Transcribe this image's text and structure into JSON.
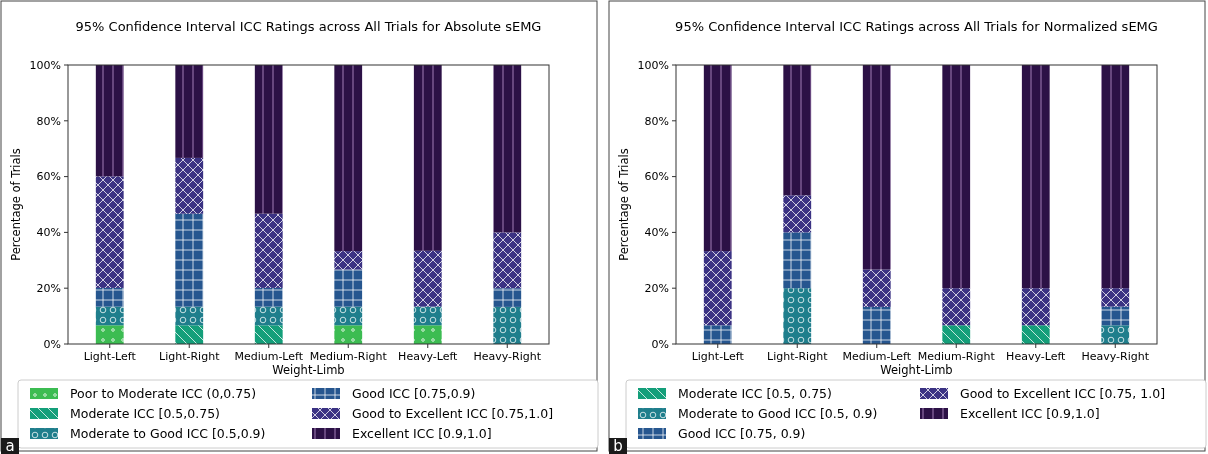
{
  "chart_data": [
    {
      "type": "bar",
      "stacked": true,
      "title": "95% Confidence Interval ICC Ratings across All Trials for Absolute sEMG",
      "xlabel": "Weight-Limb",
      "ylabel": "Percentage of Trials",
      "categories": [
        "Light-Left",
        "Light-Right",
        "Medium-Left",
        "Medium-Right",
        "Heavy-Left",
        "Heavy-Right"
      ],
      "ylim": [
        0,
        100
      ],
      "yticks": [
        {
          "value": 0,
          "label": "0%"
        },
        {
          "value": 20,
          "label": "20%"
        },
        {
          "value": 40,
          "label": "40%"
        },
        {
          "value": 60,
          "label": "60%"
        },
        {
          "value": 80,
          "label": "80%"
        },
        {
          "value": 100,
          "label": "100%"
        }
      ],
      "grid": false,
      "legend": "bottom",
      "annotations": [
        "a"
      ],
      "series": [
        {
          "name": "Poor to Moderate ICC (0,0.75)",
          "color": "#3cbc52",
          "values": [
            6.7,
            0,
            0,
            6.7,
            6.7,
            0
          ]
        },
        {
          "name": "Moderate ICC [0.5,0.75)",
          "color": "#149f7a",
          "values": [
            0,
            6.7,
            6.7,
            0,
            0,
            0
          ]
        },
        {
          "name": "Moderate to Good ICC [0.5,0.9)",
          "color": "#1f7e8c",
          "values": [
            6.7,
            6.7,
            6.7,
            6.7,
            6.7,
            13.3
          ]
        },
        {
          "name": "Good ICC [0.75,0.9)",
          "color": "#26568f",
          "values": [
            6.7,
            33.3,
            6.7,
            13.3,
            0,
            6.7
          ]
        },
        {
          "name": "Good to Excellent ICC [0.75,1.0]",
          "color": "#3b3283",
          "values": [
            40,
            20,
            26.6,
            6.6,
            20,
            20
          ]
        },
        {
          "name": "Excellent ICC [0.9,1.0]",
          "color": "#2c1146",
          "values": [
            39.9,
            33.3,
            53.3,
            66.7,
            66.6,
            60
          ]
        }
      ]
    },
    {
      "type": "bar",
      "stacked": true,
      "title": "95% Confidence Interval ICC Ratings across All Trials for Normalized sEMG",
      "xlabel": "Weight-Limb",
      "ylabel": "Percentage of Trials",
      "categories": [
        "Light-Left",
        "Light-Right",
        "Medium-Left",
        "Medium-Right",
        "Heavy-Left",
        "Heavy-Right"
      ],
      "ylim": [
        0,
        100
      ],
      "yticks": [
        {
          "value": 0,
          "label": "0%"
        },
        {
          "value": 20,
          "label": "20%"
        },
        {
          "value": 40,
          "label": "40%"
        },
        {
          "value": 60,
          "label": "60%"
        },
        {
          "value": 80,
          "label": "80%"
        },
        {
          "value": 100,
          "label": "100%"
        }
      ],
      "grid": false,
      "legend": "bottom",
      "annotations": [
        "b"
      ],
      "series": [
        {
          "name": "Moderate ICC [0.5, 0.75)",
          "color": "#149f7a",
          "values": [
            0,
            0,
            0,
            6.7,
            6.7,
            0
          ]
        },
        {
          "name": "Moderate to Good ICC [0.5, 0.9)",
          "color": "#1f7e8c",
          "values": [
            0,
            20,
            0,
            0,
            0,
            6.7
          ]
        },
        {
          "name": "Good ICC [0.75, 0.9)",
          "color": "#26568f",
          "values": [
            6.7,
            20,
            13.3,
            0,
            0,
            6.7
          ]
        },
        {
          "name": "Good to Excellent ICC [0.75, 1.0]",
          "color": "#3b3283",
          "values": [
            26.6,
            13.3,
            13.4,
            13.3,
            13.3,
            6.6
          ]
        },
        {
          "name": "Excellent ICC [0.9,1.0]",
          "color": "#2c1146",
          "values": [
            66.7,
            46.7,
            73.3,
            80,
            80,
            80
          ]
        }
      ]
    }
  ]
}
